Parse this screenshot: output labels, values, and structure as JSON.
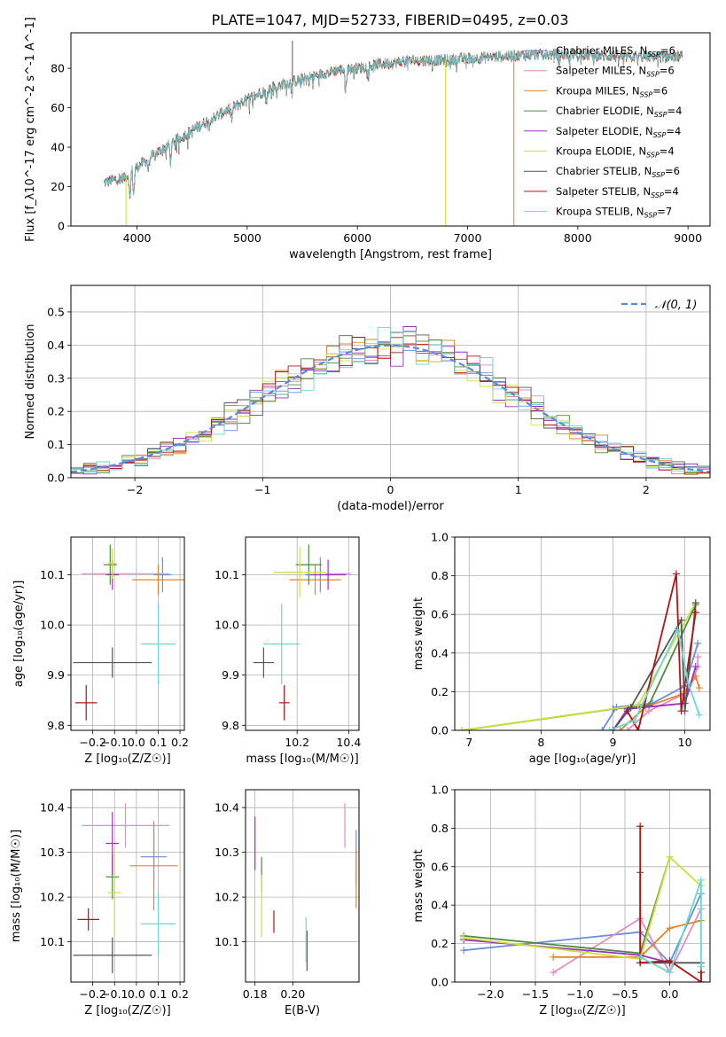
{
  "figure": {
    "title": "PLATE=1047, MJD=52733, FIBERID=0495, z=0.03"
  },
  "models": [
    {
      "name": "Chabrier MILES",
      "nssp": "6",
      "color": "#6a8fd8"
    },
    {
      "name": "Salpeter MILES",
      "nssp": "6",
      "color": "#e58cc0"
    },
    {
      "name": "Kroupa MILES",
      "nssp": "6",
      "color": "#e0852a"
    },
    {
      "name": "Chabrier ELODIE",
      "nssp": "4",
      "color": "#4e8a3e"
    },
    {
      "name": "Salpeter ELODIE",
      "nssp": "4",
      "color": "#9b30c0"
    },
    {
      "name": "Kroupa ELODIE",
      "nssp": "4",
      "color": "#cde03a"
    },
    {
      "name": "Chabrier STELIB",
      "nssp": "6",
      "color": "#555555"
    },
    {
      "name": "Salpeter STELIB",
      "nssp": "4",
      "color": "#b01515"
    },
    {
      "name": "Kroupa STELIB",
      "nssp": "7",
      "color": "#6fd6d6"
    }
  ],
  "chart_data": [
    {
      "id": "spectrum",
      "type": "line",
      "xlabel": "wavelength [Angstrom, rest frame]",
      "ylabel": "Flux [f_λ10^-17 erg cm^-2 s^-1 A^-1]",
      "xlim": [
        3400,
        9200
      ],
      "ylim": [
        0,
        98
      ],
      "xticks": [
        4000,
        5000,
        6000,
        7000,
        8000,
        9000
      ],
      "yticks": [
        0,
        20,
        40,
        60,
        80
      ],
      "grid": false,
      "legend": "upper right",
      "x_range": [
        3700,
        8950
      ],
      "continuum": [
        [
          3700,
          22
        ],
        [
          3900,
          25
        ],
        [
          4000,
          30
        ],
        [
          4200,
          38
        ],
        [
          4400,
          45
        ],
        [
          4600,
          52
        ],
        [
          4800,
          58
        ],
        [
          5000,
          64
        ],
        [
          5200,
          70
        ],
        [
          5400,
          73
        ],
        [
          5600,
          76
        ],
        [
          5800,
          79
        ],
        [
          6000,
          80
        ],
        [
          6200,
          82
        ],
        [
          6500,
          84
        ],
        [
          6800,
          84
        ],
        [
          7000,
          85
        ],
        [
          7300,
          86
        ],
        [
          7600,
          87
        ],
        [
          8000,
          87
        ],
        [
          8400,
          86
        ],
        [
          8950,
          86
        ]
      ],
      "absorption_features": [
        {
          "x": 3935,
          "depth": 14
        },
        {
          "x": 3970,
          "depth": 14
        },
        {
          "x": 4102,
          "depth": 6
        },
        {
          "x": 4305,
          "depth": 10
        },
        {
          "x": 4861,
          "depth": 6
        },
        {
          "x": 5175,
          "depth": 8
        },
        {
          "x": 5270,
          "depth": 4
        },
        {
          "x": 5894,
          "depth": 12
        }
      ],
      "model_glitches": [
        {
          "model": "Kroupa ELODIE",
          "x": 6800,
          "min": 0
        },
        {
          "model": "Kroupa MILES",
          "x": 7420,
          "min": 0
        },
        {
          "model": "Kroupa ELODIE",
          "x": 3900,
          "min": 0
        },
        {
          "model": "Chabrier STELIB",
          "x": 5410,
          "max": 94
        }
      ]
    },
    {
      "id": "residuals",
      "type": "histogram",
      "xlabel": "(data-model)/error",
      "ylabel": "Normed distribution",
      "xlim": [
        -2.5,
        2.5
      ],
      "ylim": [
        0,
        0.58
      ],
      "xticks": [
        -2,
        -1,
        0,
        1,
        2
      ],
      "yticks": [
        0.0,
        0.1,
        0.2,
        0.3,
        0.4,
        0.5
      ],
      "grid": true,
      "legend": "upper right",
      "reference_curve": {
        "label": "𝒩(0, 1)",
        "mean": 0,
        "sigma": 1,
        "color": "#5b8bd6"
      },
      "bin_width": 0.1
    },
    {
      "id": "age_vs_Z",
      "type": "scatter-errorbar",
      "xlabel": "Z [log₁₀(Z/Z☉)]",
      "ylabel": "age  [log₁₀(age/yr)]",
      "xlim": [
        -0.3,
        0.22
      ],
      "ylim": [
        9.79,
        10.175
      ],
      "xticks": [
        -0.2,
        -0.1,
        0.0,
        0.1,
        0.2
      ],
      "yticks": [
        9.8,
        9.9,
        10.0,
        10.1
      ],
      "grid": true,
      "points": [
        {
          "model": "Chabrier MILES",
          "x": 0.12,
          "xerr": 0.04,
          "y": 10.1,
          "yerr": 0.035
        },
        {
          "model": "Salpeter MILES",
          "x": -0.05,
          "xerr": 0.2,
          "y": 10.102,
          "yerr": 0.0
        },
        {
          "model": "Kroupa MILES",
          "x": 0.1,
          "xerr": 0.12,
          "y": 10.09,
          "yerr": 0.03
        },
        {
          "model": "Chabrier ELODIE",
          "x": -0.12,
          "xerr": 0.03,
          "y": 10.12,
          "yerr": 0.04
        },
        {
          "model": "Salpeter ELODIE",
          "x": -0.11,
          "xerr": 0.03,
          "y": 10.1,
          "yerr": 0.03
        },
        {
          "model": "Kroupa ELODIE",
          "x": -0.11,
          "xerr": 0.02,
          "y": 10.122,
          "yerr": 0.03
        },
        {
          "model": "Chabrier STELIB",
          "x": -0.11,
          "xerr": 0.18,
          "y": 9.925,
          "yerr": 0.03
        },
        {
          "model": "Salpeter STELIB",
          "x": -0.23,
          "xerr": 0.05,
          "y": 9.845,
          "yerr": 0.035
        },
        {
          "model": "Kroupa STELIB",
          "x": 0.1,
          "xerr": 0.08,
          "y": 9.962,
          "yerr": 0.08
        }
      ]
    },
    {
      "id": "age_vs_mass",
      "type": "scatter-errorbar",
      "xlabel": "mass [log₁₀(M/M☉)]",
      "ylabel": "",
      "xlim": [
        10.0,
        10.44
      ],
      "ylim": [
        9.79,
        10.175
      ],
      "xticks": [
        10.2,
        10.4
      ],
      "yticks": [
        9.8,
        9.9,
        10.0,
        10.1
      ],
      "grid": true,
      "points": [
        {
          "model": "Chabrier MILES",
          "x": 10.29,
          "xerr": 0.06,
          "y": 10.1,
          "yerr": 0.035
        },
        {
          "model": "Salpeter MILES",
          "x": 10.36,
          "xerr": 0.05,
          "y": 10.102,
          "yerr": 0.0
        },
        {
          "model": "Kroupa MILES",
          "x": 10.27,
          "xerr": 0.1,
          "y": 10.09,
          "yerr": 0.03
        },
        {
          "model": "Chabrier ELODIE",
          "x": 10.245,
          "xerr": 0.05,
          "y": 10.12,
          "yerr": 0.04
        },
        {
          "model": "Salpeter ELODIE",
          "x": 10.32,
          "xerr": 0.07,
          "y": 10.1,
          "yerr": 0.03
        },
        {
          "model": "Kroupa ELODIE",
          "x": 10.21,
          "xerr": 0.1,
          "y": 10.105,
          "yerr": 0.05
        },
        {
          "model": "Chabrier STELIB",
          "x": 10.07,
          "xerr": 0.04,
          "y": 9.925,
          "yerr": 0.03
        },
        {
          "model": "Salpeter STELIB",
          "x": 10.15,
          "xerr": 0.02,
          "y": 9.845,
          "yerr": 0.035
        },
        {
          "model": "Kroupa STELIB",
          "x": 10.14,
          "xerr": 0.07,
          "y": 9.962,
          "yerr": 0.08
        }
      ]
    },
    {
      "id": "weight_vs_age",
      "type": "line",
      "xlabel": "age  [log₁₀(age/yr)]",
      "ylabel": "mass weight",
      "xlim": [
        6.8,
        10.35
      ],
      "ylim": [
        0.0,
        1.0
      ],
      "xticks": [
        7,
        8,
        9,
        10
      ],
      "yticks": [
        0.0,
        0.2,
        0.4,
        0.6,
        0.8,
        1.0
      ],
      "grid": true,
      "series": [
        {
          "name": "Chabrier MILES",
          "points": [
            [
              8.85,
              0.0
            ],
            [
              9.05,
              0.12
            ],
            [
              9.55,
              0.14
            ],
            [
              10.0,
              0.23
            ],
            [
              10.18,
              0.45
            ]
          ]
        },
        {
          "name": "Salpeter MILES",
          "points": [
            [
              9.2,
              0.0
            ],
            [
              9.5,
              0.1
            ],
            [
              10.05,
              0.2
            ],
            [
              10.18,
              0.33
            ],
            [
              10.18,
              0.38
            ]
          ]
        },
        {
          "name": "Kroupa MILES",
          "points": [
            [
              9.1,
              0.0
            ],
            [
              9.45,
              0.12
            ],
            [
              9.98,
              0.19
            ],
            [
              10.15,
              0.28
            ],
            [
              10.2,
              0.22
            ]
          ]
        },
        {
          "name": "Chabrier ELODIE",
          "points": [
            [
              6.9,
              0.0
            ],
            [
              9.0,
              0.11
            ],
            [
              9.5,
              0.13
            ],
            [
              10.15,
              0.65
            ]
          ]
        },
        {
          "name": "Salpeter ELODIE",
          "points": [
            [
              9.0,
              0.0
            ],
            [
              9.2,
              0.11
            ],
            [
              10.0,
              0.14
            ],
            [
              10.15,
              0.33
            ]
          ]
        },
        {
          "name": "Kroupa ELODIE",
          "points": [
            [
              6.9,
              0.0
            ],
            [
              9.35,
              0.13
            ],
            [
              10.15,
              0.66
            ]
          ]
        },
        {
          "name": "Chabrier STELIB",
          "points": [
            [
              9.0,
              0.0
            ],
            [
              9.25,
              0.12
            ],
            [
              9.95,
              0.57
            ],
            [
              10.0,
              0.1
            ],
            [
              10.15,
              0.66
            ]
          ]
        },
        {
          "name": "Salpeter STELIB",
          "points": [
            [
              9.2,
              0.1
            ],
            [
              9.35,
              0.0
            ],
            [
              9.88,
              0.81
            ],
            [
              9.95,
              0.1
            ],
            [
              10.15,
              0.61
            ]
          ]
        },
        {
          "name": "Kroupa STELIB",
          "points": [
            [
              8.95,
              0.0
            ],
            [
              9.3,
              0.05
            ],
            [
              9.9,
              0.52
            ],
            [
              10.05,
              0.24
            ],
            [
              10.2,
              0.08
            ]
          ]
        }
      ]
    },
    {
      "id": "mass_vs_Z",
      "type": "scatter-errorbar",
      "xlabel": "Z [log₁₀(Z/Z☉)]",
      "ylabel": "mass [log₁₀(M/M☉)]",
      "xlim": [
        -0.3,
        0.22
      ],
      "ylim": [
        10.01,
        10.44
      ],
      "xticks": [
        -0.2,
        -0.1,
        0.0,
        0.1,
        0.2
      ],
      "yticks": [
        10.1,
        10.2,
        10.3,
        10.4
      ],
      "grid": true,
      "points": [
        {
          "model": "Chabrier MILES",
          "x": 0.08,
          "xerr": 0.06,
          "y": 10.29,
          "yerr": 0.06
        },
        {
          "model": "Salpeter MILES",
          "x": -0.05,
          "xerr": 0.2,
          "y": 10.36,
          "yerr": 0.05
        },
        {
          "model": "Kroupa MILES",
          "x": 0.08,
          "xerr": 0.11,
          "y": 10.27,
          "yerr": 0.1
        },
        {
          "model": "Chabrier ELODIE",
          "x": -0.11,
          "xerr": 0.03,
          "y": 10.245,
          "yerr": 0.05
        },
        {
          "model": "Salpeter ELODIE",
          "x": -0.11,
          "xerr": 0.03,
          "y": 10.32,
          "yerr": 0.07
        },
        {
          "model": "Kroupa ELODIE",
          "x": -0.1,
          "xerr": 0.03,
          "y": 10.21,
          "yerr": 0.1
        },
        {
          "model": "Chabrier STELIB",
          "x": -0.11,
          "xerr": 0.18,
          "y": 10.07,
          "yerr": 0.04
        },
        {
          "model": "Salpeter STELIB",
          "x": -0.22,
          "xerr": 0.05,
          "y": 10.15,
          "yerr": 0.025
        },
        {
          "model": "Kroupa STELIB",
          "x": 0.1,
          "xerr": 0.08,
          "y": 10.14,
          "yerr": 0.07
        }
      ]
    },
    {
      "id": "mass_vs_ebv",
      "type": "scatter-errorbar",
      "xlabel": "E(B-V)",
      "ylabel": "",
      "xlim": [
        0.175,
        0.235
      ],
      "ylim": [
        10.01,
        10.44
      ],
      "xticks": [
        0.18,
        0.2
      ],
      "yticks": [
        10.1,
        10.2,
        10.3,
        10.4
      ],
      "grid": true,
      "points": [
        {
          "model": "Chabrier MILES",
          "x": 0.2335,
          "xerr": 0.0,
          "y": 10.29,
          "yerr": 0.06
        },
        {
          "model": "Salpeter MILES",
          "x": 0.2275,
          "xerr": 0.0,
          "y": 10.36,
          "yerr": 0.05
        },
        {
          "model": "Kroupa MILES",
          "x": 0.2335,
          "xerr": 0.0,
          "y": 10.24,
          "yerr": 0.065
        },
        {
          "model": "Chabrier ELODIE",
          "x": 0.1835,
          "xerr": 0.0,
          "y": 10.25,
          "yerr": 0.04
        },
        {
          "model": "Salpeter ELODIE",
          "x": 0.18,
          "xerr": 0.0,
          "y": 10.32,
          "yerr": 0.06
        },
        {
          "model": "Kroupa ELODIE",
          "x": 0.1835,
          "xerr": 0.0,
          "y": 10.18,
          "yerr": 0.07
        },
        {
          "model": "Chabrier STELIB",
          "x": 0.2075,
          "xerr": 0.0,
          "y": 10.08,
          "yerr": 0.045
        },
        {
          "model": "Salpeter STELIB",
          "x": 0.19,
          "xerr": 0.0,
          "y": 10.145,
          "yerr": 0.025
        },
        {
          "model": "Kroupa STELIB",
          "x": 0.207,
          "xerr": 0.0,
          "y": 10.105,
          "yerr": 0.05
        }
      ]
    },
    {
      "id": "weight_vs_Z",
      "type": "line",
      "xlabel": "Z [log₁₀(Z/Z☉)]",
      "ylabel": "mass weight",
      "xlim": [
        -2.4,
        0.45
      ],
      "ylim": [
        0.0,
        1.0
      ],
      "xticks": [
        -2.0,
        -1.5,
        -1.0,
        -0.5,
        0.0
      ],
      "yticks": [
        0.0,
        0.2,
        0.4,
        0.6,
        0.8,
        1.0
      ],
      "grid": true,
      "series": [
        {
          "name": "Chabrier MILES",
          "points": [
            [
              -2.3,
              0.165
            ],
            [
              -0.33,
              0.26
            ],
            [
              0.0,
              0.1
            ],
            [
              0.35,
              0.46
            ]
          ]
        },
        {
          "name": "Salpeter MILES",
          "points": [
            [
              -1.3,
              0.05
            ],
            [
              -0.33,
              0.33
            ],
            [
              0.0,
              0.05
            ],
            [
              0.35,
              0.38
            ]
          ]
        },
        {
          "name": "Kroupa MILES",
          "points": [
            [
              -1.3,
              0.13
            ],
            [
              -0.33,
              0.13
            ],
            [
              0.0,
              0.28
            ],
            [
              0.35,
              0.32
            ]
          ]
        },
        {
          "name": "Chabrier ELODIE",
          "points": [
            [
              -2.3,
              0.24
            ],
            [
              -0.33,
              0.15
            ],
            [
              0.0,
              0.65
            ]
          ]
        },
        {
          "name": "Salpeter ELODIE",
          "points": [
            [
              -2.3,
              0.22
            ],
            [
              -0.33,
              0.14
            ],
            [
              0.0,
              0.1
            ]
          ]
        },
        {
          "name": "Kroupa ELODIE",
          "points": [
            [
              -2.3,
              0.23
            ],
            [
              -0.33,
              0.12
            ],
            [
              0.0,
              0.65
            ],
            [
              0.35,
              0.5
            ]
          ]
        },
        {
          "name": "Chabrier STELIB",
          "points": [
            [
              -0.33,
              0.57
            ],
            [
              -0.33,
              0.1
            ],
            [
              0.0,
              0.1
            ],
            [
              0.35,
              0.1
            ],
            [
              0.35,
              0.0
            ]
          ]
        },
        {
          "name": "Salpeter STELIB",
          "points": [
            [
              -0.33,
              0.81
            ],
            [
              -0.33,
              0.1
            ],
            [
              0.0,
              0.11
            ],
            [
              0.35,
              0.0
            ],
            [
              0.35,
              0.05
            ]
          ]
        },
        {
          "name": "Kroupa STELIB",
          "points": [
            [
              -0.33,
              0.13
            ],
            [
              0.0,
              0.05
            ],
            [
              0.35,
              0.53
            ],
            [
              0.35,
              0.08
            ]
          ]
        }
      ]
    }
  ]
}
